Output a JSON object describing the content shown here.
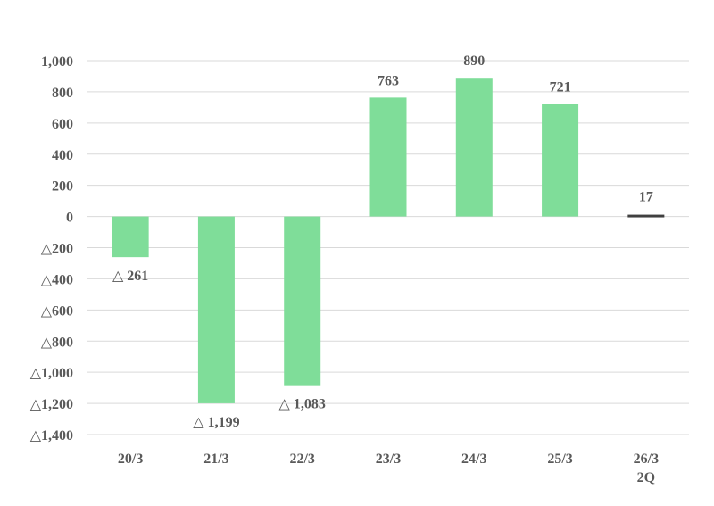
{
  "chart_data": {
    "type": "bar",
    "title": "",
    "xlabel": "",
    "ylabel": "",
    "categories": [
      "20/3",
      "21/3",
      "22/3",
      "23/3",
      "24/3",
      "25/3",
      "26/3\n2Q"
    ],
    "values": [
      -261,
      -1199,
      -1083,
      763,
      890,
      721,
      17
    ],
    "data_labels": [
      "△ 261",
      "△ 1,199",
      "△ 1,083",
      "763",
      "890",
      "721",
      "17"
    ],
    "ylim": [
      -1400,
      1000
    ],
    "y_ticks": [
      1000,
      800,
      600,
      400,
      200,
      0,
      -200,
      -400,
      -600,
      -800,
      -1000,
      -1200,
      -1400
    ],
    "y_tick_labels": [
      "1,000",
      "800",
      "600",
      "400",
      "200",
      "0",
      "△200",
      "△400",
      "△600",
      "△800",
      "△1,000",
      "△1,200",
      "△1,400"
    ],
    "grid": true,
    "legend": "none",
    "colors": {
      "bar": "#7fdd99",
      "last_bar": "#404040",
      "grid": "#d9d9d9",
      "text": "#595959"
    }
  }
}
